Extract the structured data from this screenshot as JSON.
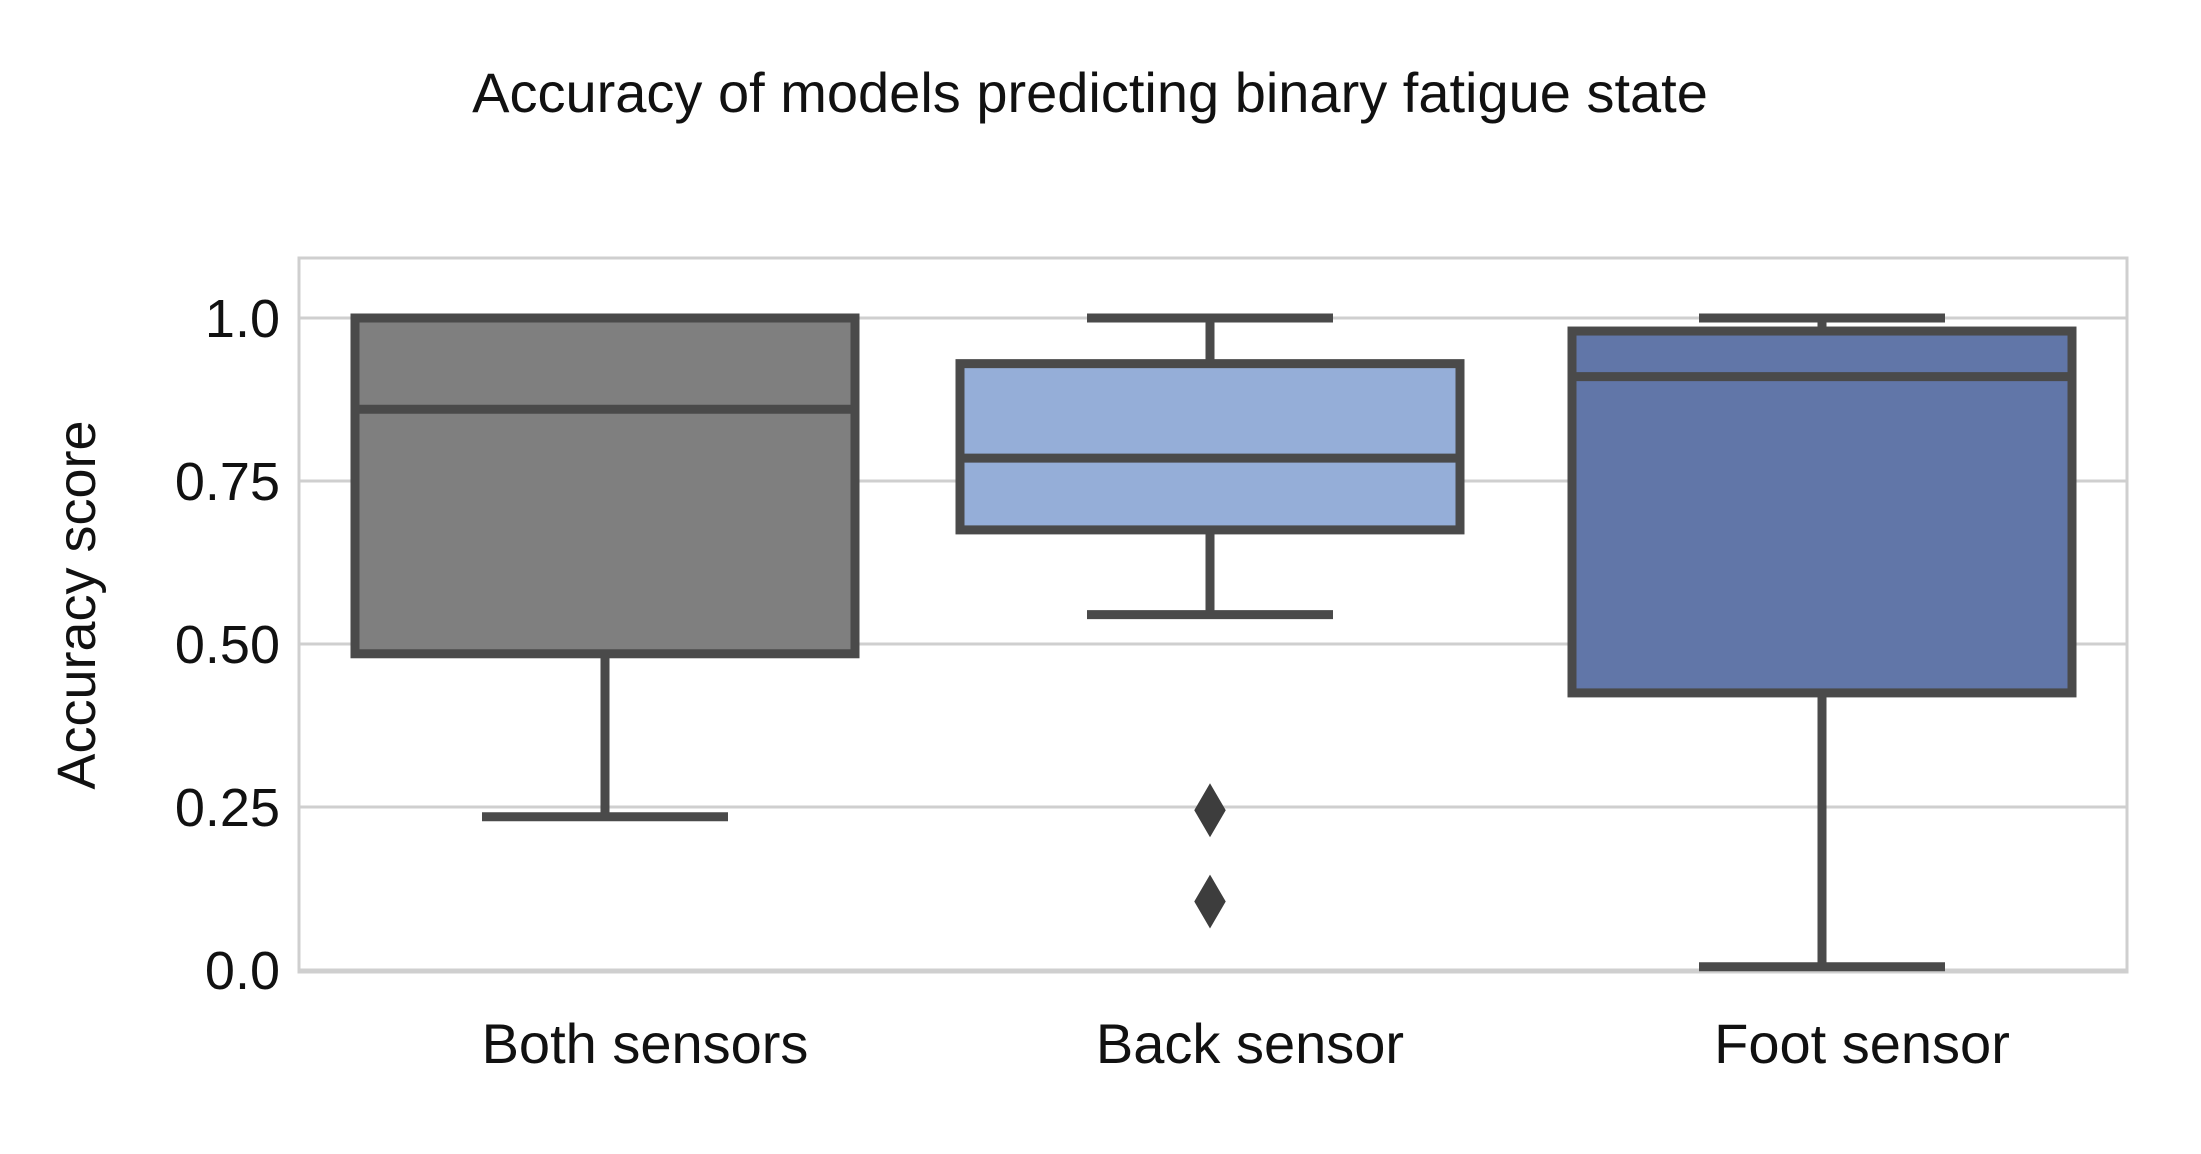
{
  "chart_data": {
    "type": "box",
    "title": "Accuracy of models predicting binary fatigue state",
    "ylabel": "Accuracy score",
    "xlabel": "",
    "ylim": [
      0,
      1.1
    ],
    "yticks": [
      0.0,
      0.25,
      0.5,
      0.75,
      1.0
    ],
    "ytick_labels": [
      "0.0",
      "0.25",
      "0.50",
      "0.75",
      "1.0"
    ],
    "grid": true,
    "categories": [
      "Both sensors",
      "Back sensor",
      "Foot sensor"
    ],
    "boxes": [
      {
        "label": "Both sensors",
        "whisker_low": 0.235,
        "q1": 0.485,
        "median": 0.86,
        "q3": 1.0,
        "whisker_high": 1.0,
        "outliers": [],
        "color": "#7f7f7f"
      },
      {
        "label": "Back sensor",
        "whisker_low": 0.545,
        "q1": 0.675,
        "median": 0.785,
        "q3": 0.93,
        "whisker_high": 1.0,
        "outliers": [
          0.245,
          0.105
        ],
        "color": "#95aed8"
      },
      {
        "label": "Foot sensor",
        "whisker_low": 0.005,
        "q1": 0.425,
        "median": 0.91,
        "q3": 0.98,
        "whisker_high": 1.0,
        "outliers": [],
        "color": "#6176a8"
      }
    ]
  }
}
